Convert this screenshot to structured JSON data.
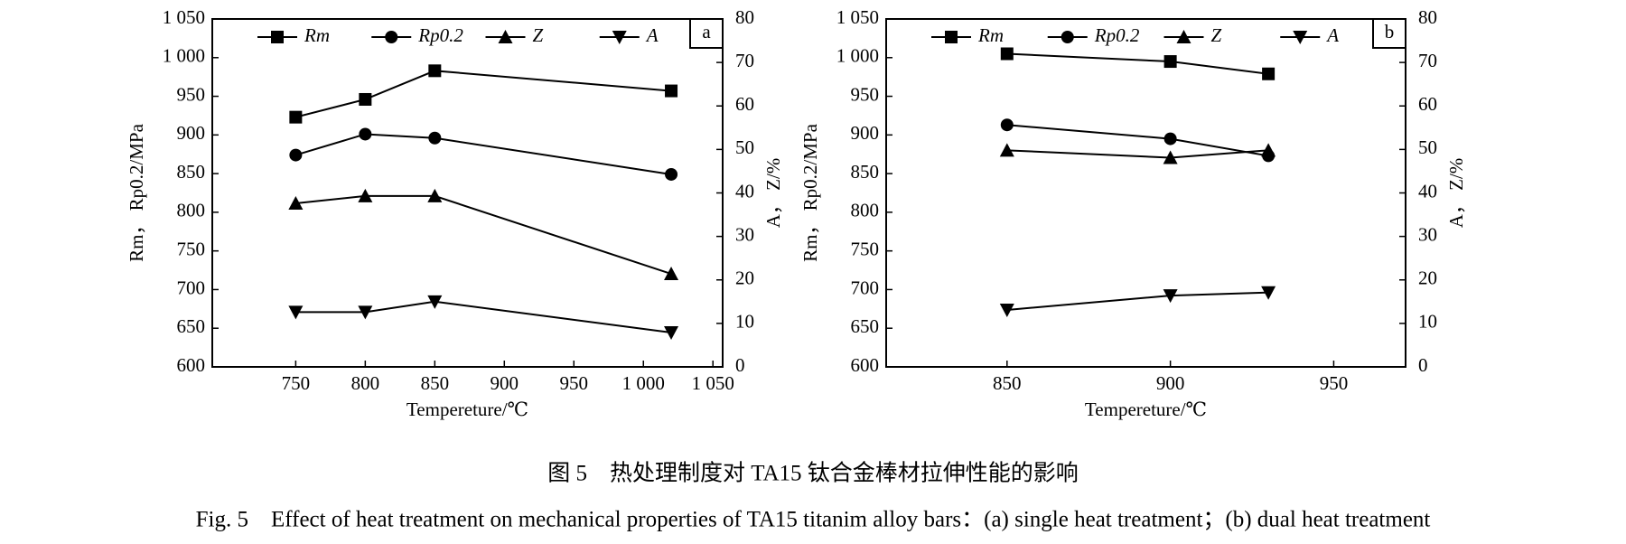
{
  "chart_data": [
    {
      "type": "line",
      "panel": "a",
      "xlabel": "Tempereture/℃",
      "ylabel": "Rm， Rp0.2/MPa",
      "y2label": "A， Z/%",
      "x": [
        750,
        800,
        850,
        1020
      ],
      "xlim": [
        690,
        1057
      ],
      "xticks": [
        750,
        800,
        850,
        900,
        950,
        {
          "value": 1000,
          "label": "1 000"
        },
        {
          "value": 1050,
          "label": "1 050"
        }
      ],
      "ylim": [
        600,
        1050
      ],
      "yticks": [
        600,
        650,
        700,
        750,
        800,
        850,
        900,
        950,
        {
          "value": 1000,
          "label": "1 000"
        },
        {
          "value": 1050,
          "label": "1 050"
        }
      ],
      "y2lim": [
        0,
        80
      ],
      "y2ticks": [
        0,
        10,
        20,
        30,
        40,
        50,
        60,
        70,
        80
      ],
      "series": [
        {
          "name": "Rm",
          "color": "#000000",
          "marker": "square",
          "values": [
            923,
            946,
            983,
            957
          ]
        },
        {
          "name": "Rp0.2",
          "color": "#000000",
          "marker": "circle",
          "values": [
            874,
            901,
            896,
            849
          ]
        },
        {
          "name": "Z",
          "color": "#000000",
          "marker": "triangle-up",
          "axis": "y2",
          "values": [
            37.6,
            39.3,
            39.3,
            21.4
          ]
        },
        {
          "name": "A",
          "color": "#000000",
          "marker": "triangle-down",
          "axis": "y2",
          "values": [
            12.6,
            12.6,
            15,
            7.9
          ]
        }
      ]
    },
    {
      "type": "line",
      "panel": "b",
      "xlabel": "Tempereture/℃",
      "ylabel": "Rm， Rp0.2/MPa",
      "y2label": "A， Z/%",
      "x": [
        850,
        900,
        930
      ],
      "xlim": [
        813,
        972
      ],
      "xticks": [
        850,
        900,
        950
      ],
      "ylim": [
        600,
        1050
      ],
      "yticks": [
        600,
        650,
        700,
        750,
        800,
        850,
        900,
        950,
        {
          "value": 1000,
          "label": "1 000"
        },
        {
          "value": 1050,
          "label": "1 050"
        }
      ],
      "y2lim": [
        0,
        80
      ],
      "y2ticks": [
        0,
        10,
        20,
        30,
        40,
        50,
        60,
        70,
        80
      ],
      "series": [
        {
          "name": "Rm",
          "color": "#000000",
          "marker": "square",
          "values": [
            1005,
            995,
            979
          ]
        },
        {
          "name": "Rp0.2",
          "color": "#000000",
          "marker": "circle",
          "values": [
            913,
            895,
            873
          ]
        },
        {
          "name": "Z",
          "color": "#000000",
          "marker": "triangle-up",
          "axis": "y2",
          "values": [
            49.8,
            48.1,
            49.8
          ]
        },
        {
          "name": "A",
          "color": "#000000",
          "marker": "triangle-down",
          "axis": "y2",
          "values": [
            13.1,
            16.4,
            17.1
          ]
        }
      ]
    }
  ],
  "caption": {
    "cn": "图 5　热处理制度对 TA15 钛合金棒材拉伸性能的影响",
    "en": "Fig. 5　Effect of heat treatment on mechanical properties of TA15 titanim alloy bars：(a) single heat treatment；(b) dual heat treatment"
  }
}
